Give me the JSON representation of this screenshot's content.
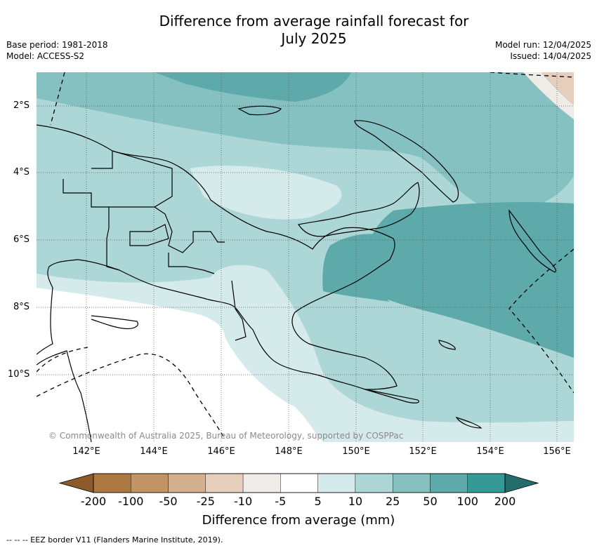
{
  "title_line1": "Difference from average rainfall forecast for",
  "title_line2": "July 2025",
  "meta_left": [
    "Base period: 1981-2018",
    "Model: ACCESS-S2"
  ],
  "meta_right": [
    "Model run: 12/04/2025",
    "Issued: 14/04/2025"
  ],
  "map": {
    "lat_labels": [
      "2°S",
      "4°S",
      "6°S",
      "8°S",
      "10°S"
    ],
    "lon_labels": [
      "142°E",
      "144°E",
      "146°E",
      "148°E",
      "150°E",
      "152°E",
      "154°E",
      "156°E"
    ],
    "copyright": "© Commonwealth of Australia 2025, Bureau of Meteorology, supported by COSPPac"
  },
  "colorbar": {
    "ticks": [
      "-200",
      "-100",
      "-50",
      "-25",
      "-10",
      "-5",
      "5",
      "10",
      "25",
      "50",
      "100",
      "200"
    ],
    "colors": [
      "#8e5a2a",
      "#ad7740",
      "#c29465",
      "#d5b08f",
      "#e6d0bd",
      "#efebe7",
      "#ffffff",
      "#d5eaea",
      "#add6d6",
      "#86c1c1",
      "#5ea9a9",
      "#339a98",
      "#236e6c"
    ],
    "title": "Difference from average (mm)"
  },
  "footnote": "--  --  -- EEZ border V11 (Flanders Marine Institute, 2019)."
}
